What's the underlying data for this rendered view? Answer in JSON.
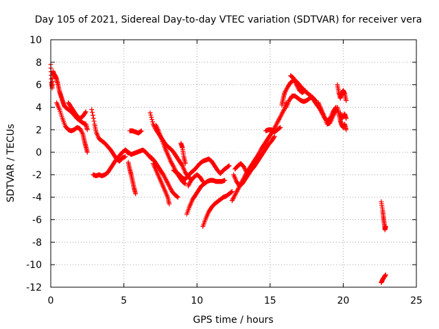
{
  "chart_data": {
    "type": "scatter",
    "title": "Day 105 of 2021, Sidereal Day-to-day VTEC variation (SDTVAR) for receiver vera",
    "xlabel": "GPS time / hours",
    "ylabel": "SDTVAR / TECUs",
    "xlim": [
      0,
      25
    ],
    "ylim": [
      -12,
      10
    ],
    "xticks": [
      "0",
      "5",
      "10",
      "15",
      "20",
      "25"
    ],
    "yticks": [
      "-12",
      "-10",
      "-8",
      "-6",
      "-4",
      "-2",
      "0",
      "2",
      "4",
      "6",
      "8",
      "10"
    ],
    "grid": true,
    "marker": "+",
    "series_color": "#ff0000",
    "segments": [
      [
        [
          0.0,
          7.8
        ],
        [
          0.05,
          6.2
        ],
        [
          0.1,
          5.7
        ],
        [
          0.15,
          7.2
        ],
        [
          0.2,
          7.0
        ],
        [
          0.3,
          6.8
        ],
        [
          0.4,
          6.5
        ],
        [
          0.5,
          6.0
        ],
        [
          0.6,
          5.4
        ],
        [
          0.7,
          5.0
        ],
        [
          0.8,
          4.6
        ],
        [
          0.9,
          4.2
        ],
        [
          1.0,
          4.0
        ],
        [
          1.2,
          3.8
        ],
        [
          1.4,
          3.6
        ],
        [
          1.6,
          3.3
        ],
        [
          1.8,
          3.0
        ],
        [
          2.0,
          2.8
        ],
        [
          2.2,
          2.6
        ],
        [
          2.4,
          2.5
        ],
        [
          2.5,
          2.0
        ]
      ],
      [
        [
          0.4,
          4.4
        ],
        [
          0.6,
          3.8
        ],
        [
          0.8,
          3.0
        ],
        [
          1.0,
          2.3
        ],
        [
          1.2,
          2.0
        ],
        [
          1.4,
          1.9
        ],
        [
          1.6,
          2.0
        ],
        [
          1.8,
          2.2
        ],
        [
          2.0,
          2.1
        ],
        [
          2.2,
          1.6
        ],
        [
          2.3,
          1.0
        ],
        [
          2.4,
          0.5
        ],
        [
          2.5,
          0.0
        ]
      ],
      [
        [
          1.2,
          4.4
        ],
        [
          1.4,
          4.0
        ],
        [
          1.6,
          3.6
        ],
        [
          1.8,
          3.2
        ],
        [
          2.0,
          3.0
        ],
        [
          2.2,
          3.2
        ],
        [
          2.4,
          3.6
        ]
      ],
      [
        [
          2.8,
          3.8
        ],
        [
          3.0,
          2.5
        ],
        [
          3.1,
          1.8
        ],
        [
          3.3,
          1.2
        ],
        [
          3.5,
          1.0
        ],
        [
          3.7,
          0.8
        ],
        [
          3.9,
          0.5
        ],
        [
          4.1,
          0.2
        ],
        [
          4.3,
          -0.2
        ],
        [
          4.5,
          -0.6
        ],
        [
          4.7,
          -0.8
        ],
        [
          4.9,
          -0.5
        ],
        [
          5.1,
          -0.4
        ]
      ],
      [
        [
          2.9,
          -2.0
        ],
        [
          3.1,
          -2.1
        ],
        [
          3.3,
          -2.0
        ],
        [
          3.5,
          -2.1
        ],
        [
          3.7,
          -2.0
        ],
        [
          3.9,
          -1.8
        ],
        [
          4.1,
          -1.4
        ],
        [
          4.3,
          -1.0
        ],
        [
          4.5,
          -0.6
        ],
        [
          4.7,
          -0.3
        ],
        [
          4.9,
          0.0
        ],
        [
          5.1,
          0.2
        ],
        [
          5.3,
          -0.1
        ]
      ],
      [
        [
          5.1,
          0.2
        ],
        [
          5.3,
          0.0
        ],
        [
          5.5,
          -0.2
        ],
        [
          5.7,
          -0.1
        ],
        [
          5.9,
          0.0
        ],
        [
          6.1,
          0.1
        ],
        [
          6.3,
          0.2
        ],
        [
          6.5,
          0.0
        ],
        [
          6.7,
          -0.3
        ],
        [
          6.9,
          -0.6
        ]
      ],
      [
        [
          5.4,
          1.9
        ],
        [
          5.6,
          1.9
        ],
        [
          5.8,
          1.8
        ],
        [
          6.0,
          1.7
        ],
        [
          6.2,
          1.9
        ]
      ],
      [
        [
          5.3,
          -0.9
        ],
        [
          5.4,
          -1.5
        ],
        [
          5.5,
          -2.0
        ],
        [
          5.6,
          -2.6
        ],
        [
          5.7,
          -3.2
        ],
        [
          5.8,
          -3.7
        ]
      ],
      [
        [
          6.7,
          -0.3
        ],
        [
          6.9,
          -0.5
        ],
        [
          7.1,
          -0.8
        ],
        [
          7.3,
          -1.2
        ],
        [
          7.5,
          -1.6
        ],
        [
          7.7,
          -2.0
        ],
        [
          7.9,
          -2.5
        ],
        [
          8.1,
          -3.0
        ],
        [
          8.3,
          -3.5
        ],
        [
          8.5,
          -3.8
        ],
        [
          8.7,
          -4.0
        ]
      ],
      [
        [
          7.0,
          -1.0
        ],
        [
          7.2,
          -1.6
        ],
        [
          7.4,
          -2.2
        ],
        [
          7.6,
          -2.8
        ],
        [
          7.8,
          -3.4
        ],
        [
          8.0,
          -4.0
        ],
        [
          8.1,
          -4.6
        ]
      ],
      [
        [
          6.8,
          3.5
        ],
        [
          7.0,
          2.5
        ],
        [
          7.2,
          2.0
        ],
        [
          7.4,
          1.6
        ],
        [
          7.6,
          1.2
        ],
        [
          7.8,
          0.8
        ],
        [
          8.0,
          0.5
        ],
        [
          8.2,
          0.3
        ],
        [
          8.4,
          0.0
        ],
        [
          8.6,
          -0.4
        ],
        [
          8.8,
          -0.8
        ],
        [
          9.0,
          -1.2
        ],
        [
          9.2,
          -1.8
        ],
        [
          9.4,
          -2.2
        ],
        [
          9.6,
          -2.4
        ]
      ],
      [
        [
          7.2,
          2.4
        ],
        [
          7.4,
          1.8
        ],
        [
          7.6,
          1.1
        ],
        [
          7.8,
          0.4
        ],
        [
          8.0,
          -0.2
        ],
        [
          8.2,
          -0.8
        ],
        [
          8.4,
          -1.3
        ],
        [
          8.6,
          -1.8
        ],
        [
          8.8,
          -2.2
        ],
        [
          9.0,
          -2.6
        ],
        [
          9.2,
          -2.8
        ]
      ],
      [
        [
          8.4,
          -1.6
        ],
        [
          8.6,
          -1.8
        ],
        [
          8.8,
          -2.0
        ],
        [
          9.0,
          -2.3
        ],
        [
          9.2,
          -2.4
        ],
        [
          9.4,
          -2.1
        ],
        [
          9.6,
          -1.8
        ],
        [
          9.8,
          -1.6
        ],
        [
          10.0,
          -1.3
        ],
        [
          10.2,
          -1.0
        ],
        [
          10.4,
          -0.8
        ],
        [
          10.6,
          -0.7
        ],
        [
          10.8,
          -0.6
        ],
        [
          11.0,
          -0.8
        ],
        [
          11.2,
          -1.2
        ],
        [
          11.4,
          -1.6
        ],
        [
          11.6,
          -1.9
        ],
        [
          11.8,
          -1.6
        ],
        [
          12.0,
          -1.4
        ],
        [
          12.2,
          -1.2
        ]
      ],
      [
        [
          9.4,
          -3.0
        ],
        [
          9.6,
          -2.5
        ],
        [
          9.8,
          -2.2
        ],
        [
          10.0,
          -2.0
        ],
        [
          10.2,
          -2.2
        ],
        [
          10.4,
          -2.6
        ]
      ],
      [
        [
          8.9,
          0.8
        ],
        [
          9.0,
          0.4
        ],
        [
          9.1,
          -0.4
        ],
        [
          9.2,
          -1.0
        ]
      ],
      [
        [
          9.3,
          -5.5
        ],
        [
          9.5,
          -4.8
        ],
        [
          9.7,
          -4.2
        ],
        [
          9.9,
          -3.8
        ],
        [
          10.1,
          -3.4
        ],
        [
          10.3,
          -3.0
        ],
        [
          10.5,
          -2.8
        ],
        [
          10.7,
          -2.6
        ],
        [
          10.9,
          -2.5
        ],
        [
          11.1,
          -2.5
        ],
        [
          11.3,
          -2.6
        ],
        [
          11.5,
          -2.6
        ],
        [
          11.7,
          -2.6
        ],
        [
          11.9,
          -2.5
        ]
      ],
      [
        [
          10.4,
          -6.6
        ],
        [
          10.6,
          -5.9
        ],
        [
          10.8,
          -5.3
        ],
        [
          11.0,
          -4.9
        ],
        [
          11.2,
          -4.6
        ],
        [
          11.4,
          -4.4
        ],
        [
          11.6,
          -4.2
        ],
        [
          11.8,
          -4.0
        ],
        [
          12.0,
          -3.9
        ],
        [
          12.2,
          -3.7
        ],
        [
          12.4,
          -3.5
        ]
      ],
      [
        [
          12.4,
          -4.3
        ],
        [
          12.6,
          -3.8
        ],
        [
          12.8,
          -3.3
        ],
        [
          13.0,
          -2.8
        ],
        [
          13.2,
          -2.3
        ],
        [
          13.4,
          -1.8
        ],
        [
          13.6,
          -1.4
        ],
        [
          13.8,
          -1.0
        ],
        [
          14.0,
          -0.6
        ],
        [
          14.2,
          -0.2
        ],
        [
          14.4,
          0.3
        ],
        [
          14.6,
          0.7
        ],
        [
          14.8,
          1.1
        ],
        [
          15.0,
          1.5
        ],
        [
          15.2,
          1.9
        ],
        [
          15.4,
          2.4
        ],
        [
          15.6,
          2.9
        ],
        [
          15.8,
          3.4
        ],
        [
          16.0,
          3.9
        ],
        [
          16.1,
          4.4
        ]
      ],
      [
        [
          12.5,
          -2.0
        ],
        [
          12.7,
          -2.6
        ],
        [
          12.9,
          -3.0
        ],
        [
          13.1,
          -2.8
        ],
        [
          13.3,
          -2.4
        ],
        [
          13.5,
          -2.0
        ],
        [
          13.7,
          -1.6
        ],
        [
          13.9,
          -1.3
        ],
        [
          14.1,
          -0.9
        ],
        [
          14.3,
          -0.5
        ],
        [
          14.5,
          -0.1
        ],
        [
          14.7,
          0.3
        ],
        [
          14.9,
          0.7
        ],
        [
          15.1,
          1.0
        ],
        [
          15.3,
          1.4
        ]
      ],
      [
        [
          12.6,
          -1.5
        ],
        [
          12.8,
          -1.2
        ],
        [
          13.0,
          -1.0
        ],
        [
          13.2,
          -1.3
        ],
        [
          13.4,
          -1.8
        ]
      ],
      [
        [
          14.7,
          1.9
        ],
        [
          14.9,
          2.0
        ],
        [
          15.1,
          2.0
        ],
        [
          15.3,
          1.8
        ],
        [
          15.5,
          2.0
        ],
        [
          15.7,
          2.2
        ]
      ],
      [
        [
          15.8,
          4.2
        ],
        [
          15.9,
          4.8
        ],
        [
          16.0,
          5.3
        ],
        [
          16.2,
          5.8
        ],
        [
          16.4,
          6.2
        ],
        [
          16.6,
          6.4
        ],
        [
          16.8,
          6.3
        ],
        [
          17.0,
          6.0
        ],
        [
          17.2,
          5.7
        ],
        [
          17.4,
          5.4
        ],
        [
          17.6,
          5.2
        ],
        [
          17.8,
          5.0
        ],
        [
          18.0,
          4.6
        ],
        [
          18.2,
          4.2
        ],
        [
          18.4,
          3.9
        ]
      ],
      [
        [
          16.1,
          4.0
        ],
        [
          16.3,
          4.6
        ],
        [
          16.5,
          5.0
        ],
        [
          16.7,
          5.0
        ],
        [
          16.9,
          4.8
        ],
        [
          17.1,
          4.6
        ],
        [
          17.3,
          4.5
        ],
        [
          17.5,
          4.6
        ],
        [
          17.7,
          4.8
        ],
        [
          17.9,
          4.9
        ],
        [
          18.1,
          4.6
        ],
        [
          18.3,
          4.1
        ],
        [
          18.5,
          3.6
        ],
        [
          18.7,
          3.1
        ],
        [
          18.9,
          2.8
        ],
        [
          19.1,
          3.0
        ],
        [
          19.3,
          3.6
        ],
        [
          19.5,
          4.0
        ]
      ],
      [
        [
          16.4,
          6.8
        ],
        [
          16.6,
          6.6
        ],
        [
          16.8,
          6.0
        ],
        [
          17.0,
          5.5
        ],
        [
          17.2,
          5.3
        ],
        [
          17.4,
          5.5
        ]
      ],
      [
        [
          18.3,
          4.4
        ],
        [
          18.5,
          3.8
        ],
        [
          18.7,
          3.2
        ],
        [
          18.9,
          2.5
        ],
        [
          19.1,
          2.6
        ],
        [
          19.3,
          3.2
        ],
        [
          19.5,
          3.7
        ]
      ],
      [
        [
          19.6,
          6.0
        ],
        [
          19.7,
          5.3
        ],
        [
          19.8,
          4.8
        ],
        [
          19.9,
          5.2
        ],
        [
          20.0,
          5.5
        ],
        [
          20.1,
          5.2
        ],
        [
          20.2,
          4.6
        ]
      ],
      [
        [
          19.6,
          4.0
        ],
        [
          19.7,
          3.4
        ],
        [
          19.8,
          2.8
        ],
        [
          19.9,
          2.4
        ],
        [
          20.0,
          2.2
        ],
        [
          20.1,
          2.5
        ],
        [
          20.2,
          2.0
        ]
      ],
      [
        [
          19.8,
          3.5
        ],
        [
          19.9,
          3.0
        ],
        [
          20.0,
          3.2
        ],
        [
          20.1,
          3.4
        ],
        [
          20.2,
          3.0
        ]
      ],
      [
        [
          22.6,
          -4.4
        ],
        [
          22.7,
          -5.2
        ],
        [
          22.75,
          -5.8
        ],
        [
          22.8,
          -6.3
        ],
        [
          22.85,
          -6.9
        ],
        [
          22.9,
          -6.6
        ]
      ],
      [
        [
          22.6,
          -11.6
        ],
        [
          22.7,
          -11.3
        ],
        [
          22.8,
          -11.1
        ],
        [
          22.9,
          -10.9
        ]
      ]
    ]
  }
}
